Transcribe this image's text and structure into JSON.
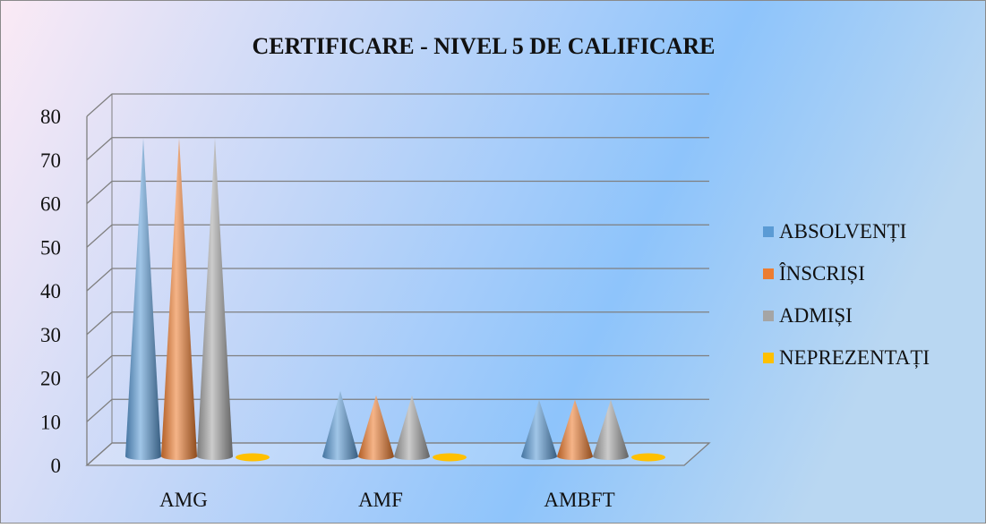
{
  "chart_data": {
    "type": "bar",
    "title": "CERTIFICARE - NIVEL 5 DE CALIFICARE",
    "categories": [
      "AMG",
      "AMF",
      "AMBFT"
    ],
    "series": [
      {
        "name": "ABSOLVENȚI",
        "values": [
          73,
          15,
          13
        ],
        "color": "#5b9bd5"
      },
      {
        "name": "ÎNSCRIȘI",
        "values": [
          73,
          14,
          13
        ],
        "color": "#ed7d31"
      },
      {
        "name": "ADMIȘI",
        "values": [
          73,
          14,
          13
        ],
        "color": "#a5a5a5"
      },
      {
        "name": "NEPREZENTAȚI",
        "values": [
          0,
          0,
          0
        ],
        "color": "#ffc000"
      }
    ],
    "ylim": [
      0,
      80
    ],
    "yticks": [
      0,
      10,
      20,
      30,
      40,
      50,
      60,
      70,
      80
    ],
    "grid": true,
    "legend": "right",
    "background": [
      "#fbeaf5",
      "#8ec4fb"
    ]
  }
}
